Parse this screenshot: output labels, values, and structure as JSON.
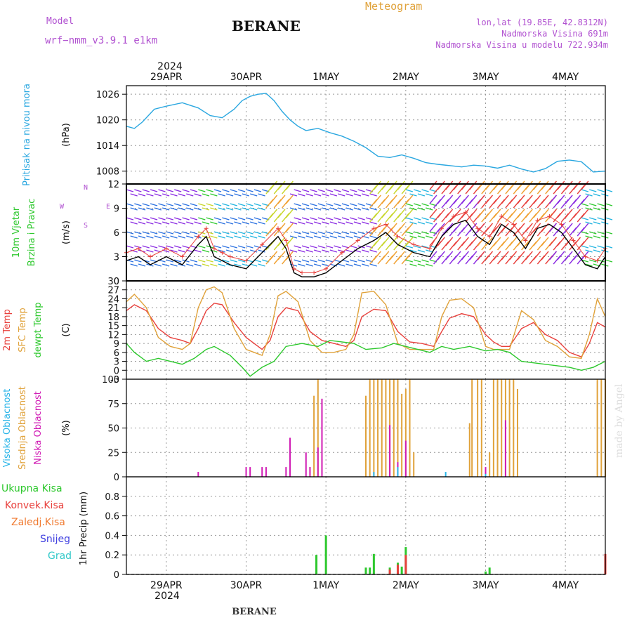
{
  "header": {
    "model_label": "Model",
    "model_name": "wrf−nmm_v3.9.1  e1km",
    "station": "BERANE",
    "product": "Meteogram",
    "coords": "lon,lat (19.85E, 42.8312N)",
    "elevation": "Nadmorska Visina 691m",
    "model_elevation": "Nadmorska Visina u modelu 722.934m",
    "footer_station": "BERANE",
    "watermark": "made by Angel"
  },
  "colors": {
    "pressure": "#2aa7e0",
    "temp2m": "#e8403c",
    "sfc_temp": "#e0a23a",
    "dewpoint": "#2cc82c",
    "high_cloud": "#28b4e8",
    "mid_cloud": "#e0a23a",
    "low_cloud": "#d01ab4",
    "total_precip": "#2ec82e",
    "conv_precip": "#e8403c",
    "frz_precip": "#f07a30",
    "snow": "#4040e0",
    "hail": "#30c8c8",
    "wind_label": "#2ec82e",
    "compass": "#b050d0"
  },
  "chart_data": [
    {
      "type": "line",
      "panel": "pressure",
      "ylabel_lines": [
        "Pritisak na nivou mora"
      ],
      "unit": "(hPa)",
      "ylim": [
        1005,
        1028
      ],
      "yticks": [
        1008,
        1014,
        1020,
        1026
      ],
      "grid": true,
      "series": [
        {
          "color_key": "pressure",
          "x": [
            0,
            0.1,
            0.2,
            0.35,
            0.5,
            0.7,
            0.9,
            1.05,
            1.2,
            1.35,
            1.45,
            1.55,
            1.65,
            1.75,
            1.85,
            1.95,
            2.05,
            2.15,
            2.25,
            2.4,
            2.55,
            2.7,
            2.85,
            3.0,
            3.15,
            3.3,
            3.45,
            3.6,
            3.75,
            3.9,
            4.05,
            4.2,
            4.35,
            4.5,
            4.65,
            4.8,
            4.95,
            5.1,
            5.25,
            5.4,
            5.55,
            5.7,
            5.85,
            6.0
          ],
          "values": [
            1018.5,
            1018,
            1019.5,
            1022.5,
            1023.2,
            1024,
            1022.8,
            1021,
            1020.5,
            1022.5,
            1024.5,
            1025.5,
            1026,
            1026.2,
            1024.5,
            1022,
            1020,
            1018.5,
            1017.5,
            1018,
            1017,
            1016.2,
            1015,
            1013.5,
            1011.5,
            1011.2,
            1011.8,
            1011,
            1010,
            1009.6,
            1009.3,
            1009,
            1009.4,
            1009.2,
            1008.7,
            1009.4,
            1008.5,
            1007.8,
            1008.6,
            1010.3,
            1010.6,
            1010.2,
            1007.8,
            1008
          ]
        }
      ]
    },
    {
      "type": "line",
      "panel": "wind",
      "ylabel_lines": [
        "10m Vjetar",
        "Brzina i Pravac"
      ],
      "unit": "(m/s)",
      "compass": [
        "N",
        "W",
        "E",
        "S"
      ],
      "ylim": [
        0,
        12
      ],
      "yticks": [
        0,
        3,
        6,
        9,
        12
      ],
      "grid": true,
      "series": [
        {
          "name": "speed",
          "color": "#000000",
          "x": [
            0,
            0.15,
            0.3,
            0.5,
            0.7,
            0.9,
            1.0,
            1.1,
            1.2,
            1.3,
            1.5,
            1.7,
            1.9,
            2.0,
            2.1,
            2.2,
            2.35,
            2.5,
            2.7,
            2.9,
            3.1,
            3.25,
            3.4,
            3.6,
            3.8,
            3.95,
            4.1,
            4.25,
            4.4,
            4.55,
            4.7,
            4.85,
            5.0,
            5.15,
            5.3,
            5.45,
            5.6,
            5.75,
            5.9,
            6.0
          ],
          "values": [
            2.5,
            3,
            2,
            3,
            2,
            4.5,
            5.5,
            3,
            2.5,
            2,
            1.5,
            3.5,
            5.5,
            4,
            1,
            0.5,
            0.5,
            1,
            2.5,
            4,
            5,
            6,
            4.5,
            3.5,
            3,
            5.5,
            7,
            7.5,
            5.5,
            4.5,
            7,
            6,
            4,
            6.5,
            7,
            6,
            4,
            2,
            1.5,
            3
          ]
        },
        {
          "name": "gust",
          "color": "#e8403c",
          "x": [
            0,
            0.15,
            0.3,
            0.5,
            0.7,
            0.9,
            1.0,
            1.1,
            1.2,
            1.3,
            1.5,
            1.7,
            1.9,
            2.0,
            2.1,
            2.2,
            2.35,
            2.5,
            2.7,
            2.9,
            3.1,
            3.25,
            3.4,
            3.6,
            3.8,
            3.95,
            4.1,
            4.25,
            4.4,
            4.55,
            4.7,
            4.85,
            5.0,
            5.15,
            5.3,
            5.45,
            5.6,
            5.75,
            5.9,
            6.0
          ],
          "values": [
            3.5,
            4,
            3,
            4,
            3,
            5.5,
            6.5,
            4,
            3.5,
            3,
            2.5,
            4.5,
            6.5,
            5,
            1.5,
            1,
            1,
            1.5,
            3.5,
            5,
            6.5,
            7,
            5.5,
            4.5,
            4,
            6.5,
            8,
            8.5,
            6.5,
            5.5,
            8,
            7,
            5,
            7.5,
            8,
            7,
            5,
            3,
            2.5,
            4
          ]
        }
      ]
    },
    {
      "type": "line",
      "panel": "temperature",
      "ylabel_lines": [
        "2m Temp",
        "SFC Temp",
        "dewpt Temp"
      ],
      "unit": "(C)",
      "ylim": [
        -3,
        30
      ],
      "yticks": [
        -3,
        0,
        3,
        6,
        9,
        12,
        15,
        18,
        21,
        24,
        27,
        30
      ],
      "grid": true,
      "series": [
        {
          "name": "2m Temp",
          "color_key": "temp2m",
          "x": [
            0,
            0.1,
            0.25,
            0.4,
            0.55,
            0.7,
            0.8,
            0.9,
            1.0,
            1.1,
            1.2,
            1.35,
            1.5,
            1.6,
            1.7,
            1.8,
            1.9,
            2.0,
            2.15,
            2.3,
            2.45,
            2.6,
            2.75,
            2.85,
            2.95,
            3.1,
            3.25,
            3.4,
            3.55,
            3.7,
            3.85,
            3.95,
            4.05,
            4.2,
            4.35,
            4.5,
            4.6,
            4.7,
            4.8,
            4.95,
            5.1,
            5.25,
            5.4,
            5.55,
            5.7,
            5.8,
            5.9,
            6.0
          ],
          "values": [
            20,
            22,
            20,
            14,
            11,
            10,
            9,
            14,
            20,
            22.5,
            22,
            16,
            11,
            9,
            7,
            10,
            18,
            21,
            20,
            13,
            10,
            9,
            8,
            10,
            18,
            20.5,
            20,
            13,
            9.5,
            9,
            8,
            13,
            17.5,
            19,
            18,
            12,
            9.5,
            8,
            8,
            14,
            16,
            12,
            10,
            6,
            4.5,
            9,
            16,
            14.5
          ]
        },
        {
          "name": "SFC Temp",
          "color_key": "sfc_temp",
          "x": [
            0,
            0.1,
            0.25,
            0.4,
            0.55,
            0.7,
            0.8,
            0.9,
            1.0,
            1.1,
            1.2,
            1.35,
            1.5,
            1.6,
            1.7,
            1.8,
            1.9,
            2.0,
            2.15,
            2.3,
            2.45,
            2.6,
            2.75,
            2.85,
            2.95,
            3.1,
            3.25,
            3.4,
            3.55,
            3.7,
            3.85,
            3.95,
            4.05,
            4.2,
            4.35,
            4.5,
            4.6,
            4.7,
            4.8,
            4.95,
            5.1,
            5.25,
            5.4,
            5.55,
            5.7,
            5.8,
            5.9,
            6.0
          ],
          "values": [
            23,
            25.5,
            21,
            11,
            8,
            7,
            9,
            21,
            27,
            28,
            26,
            14,
            7,
            6,
            5,
            12,
            25,
            26.5,
            23,
            10,
            6,
            6,
            7,
            12,
            26,
            26.5,
            22,
            9,
            7,
            7,
            7,
            18,
            23.5,
            24,
            21,
            8,
            7,
            7,
            7,
            20,
            17,
            10,
            8,
            4.5,
            4,
            12,
            24,
            18
          ]
        },
        {
          "name": "dewpt Temp",
          "color_key": "dewpoint",
          "x": [
            0,
            0.1,
            0.25,
            0.4,
            0.55,
            0.7,
            0.85,
            1.0,
            1.1,
            1.2,
            1.3,
            1.45,
            1.55,
            1.7,
            1.85,
            2.0,
            2.2,
            2.4,
            2.55,
            2.7,
            2.85,
            3.0,
            3.2,
            3.35,
            3.5,
            3.65,
            3.8,
            3.95,
            4.1,
            4.3,
            4.5,
            4.65,
            4.8,
            4.95,
            5.1,
            5.25,
            5.4,
            5.55,
            5.7,
            5.85,
            6.0
          ],
          "values": [
            9,
            6,
            3,
            4,
            3,
            2,
            4,
            7,
            8,
            6.5,
            5,
            1,
            -2,
            1,
            3,
            8,
            9,
            8,
            10,
            9.5,
            9,
            7,
            7.5,
            9,
            8,
            7,
            6,
            8,
            7,
            8,
            6.5,
            7,
            6,
            3,
            2.5,
            2,
            1.5,
            1,
            0,
            1,
            3
          ]
        }
      ]
    },
    {
      "type": "bar",
      "panel": "cloud",
      "ylabel_lines": [
        "Visoka Oblacnost",
        "Srednja Oblacnost",
        "Niska Oblacnost"
      ],
      "unit": "(%)",
      "ylim": [
        0,
        100
      ],
      "yticks": [
        0,
        25,
        50,
        75,
        100
      ],
      "grid": true,
      "series": [
        {
          "name": "Srednja Oblacnost",
          "color_key": "mid_cloud",
          "x": [
            2.3,
            2.35,
            2.4,
            2.45,
            3.0,
            3.05,
            3.1,
            3.15,
            3.2,
            3.25,
            3.3,
            3.35,
            3.4,
            3.45,
            3.5,
            3.55,
            3.6,
            4.3,
            4.33,
            4.4,
            4.45,
            4.55,
            4.6,
            4.65,
            4.7,
            4.75,
            4.8,
            4.85,
            4.9,
            5.9,
            5.95,
            6.0
          ],
          "values": [
            10,
            83,
            100,
            18,
            83,
            100,
            100,
            100,
            100,
            100,
            100,
            100,
            100,
            85,
            90,
            100,
            25,
            55,
            100,
            100,
            100,
            25,
            100,
            100,
            100,
            100,
            100,
            100,
            90,
            100,
            100,
            100
          ]
        },
        {
          "name": "Niska Oblacnost",
          "color_key": "low_cloud",
          "x": [
            0.9,
            1.5,
            1.55,
            1.7,
            1.75,
            2.0,
            2.05,
            2.25,
            2.3,
            2.4,
            2.45,
            3.3,
            3.4,
            3.5,
            4.5,
            4.75
          ],
          "values": [
            5,
            10,
            10,
            10,
            10,
            10,
            40,
            25,
            10,
            30,
            80,
            53,
            15,
            37,
            10,
            58
          ]
        },
        {
          "name": "Visoka Oblacnost",
          "color_key": "high_cloud",
          "x": [
            3.1,
            3.4,
            4.0,
            4.5
          ],
          "values": [
            5,
            10,
            5,
            3
          ]
        }
      ]
    },
    {
      "type": "bar",
      "panel": "precip",
      "ylabel_lines": [
        "1hr Precip (mm)"
      ],
      "unit": "",
      "legend": [
        "Ukupna Kisa",
        "Konvek.Kisa",
        "Zaledj.Kisa",
        "Snijeg",
        "Grad"
      ],
      "ylim": [
        0,
        1.0
      ],
      "yticks": [
        0,
        0.2,
        0.4,
        0.6,
        0.8
      ],
      "grid": true,
      "series": [
        {
          "name": "Ukupna Kisa",
          "color_key": "total_precip",
          "x": [
            2.38,
            2.5,
            3.0,
            3.05,
            3.1,
            3.3,
            3.4,
            3.45,
            3.5,
            4.5,
            4.55,
            6.0
          ],
          "values": [
            0.2,
            0.4,
            0.07,
            0.07,
            0.21,
            0.07,
            0.12,
            0.08,
            0.28,
            0.03,
            0.07,
            0.2
          ]
        },
        {
          "name": "Konvek.Kisa",
          "color_key": "conv_precip",
          "x": [
            3.3,
            3.4,
            3.5,
            6.0
          ],
          "values": [
            0.05,
            0.1,
            0.2,
            0.21
          ]
        }
      ]
    }
  ],
  "date_axis": {
    "year": "2024",
    "labels": [
      "29APR",
      "30APR",
      "1MAY",
      "2MAY",
      "3MAY",
      "4MAY"
    ],
    "label_x": [
      0.5,
      1.5,
      2.5,
      3.5,
      4.5,
      5.5
    ],
    "grid_x": [
      0.5,
      1.5,
      2.5,
      3.5,
      4.5,
      5.5
    ]
  }
}
